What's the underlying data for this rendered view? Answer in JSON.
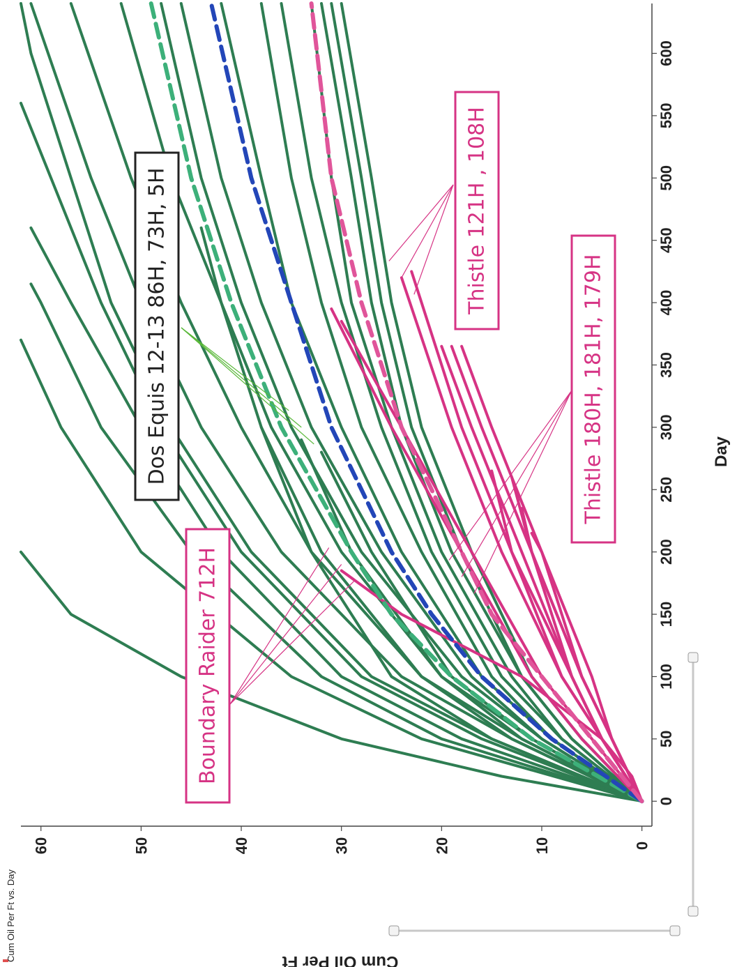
{
  "chart_data": {
    "type": "line",
    "title": "Cum Oil Per Ft vs. Day",
    "xlabel": "Day",
    "ylabel": "Cum Oil Per Ft",
    "xlim": [
      -20,
      640
    ],
    "ylim": [
      -1,
      62
    ],
    "x_ticks": [
      0,
      50,
      100,
      150,
      200,
      250,
      300,
      350,
      400,
      450,
      500,
      550,
      600
    ],
    "y_ticks": [
      0,
      10,
      20,
      30,
      40,
      50,
      60
    ],
    "grid": false,
    "colors": {
      "green_wells": "#2e7d52",
      "thistle_wells": "#d63384",
      "green_type_curve": "#3db07a",
      "blue_type_curve": "#2346b8",
      "pink_type_curve": "#e0559a",
      "dos_equis_box": "#222222",
      "thistle_box": "#d63384"
    },
    "series": [
      {
        "group": "green",
        "x": [
          0,
          20,
          50,
          100,
          150,
          200
        ],
        "y": [
          0,
          14,
          30,
          46,
          57,
          65
        ]
      },
      {
        "group": "green",
        "x": [
          0,
          50,
          100,
          200,
          300,
          370
        ],
        "y": [
          0,
          22,
          35,
          50,
          58,
          62
        ]
      },
      {
        "group": "green",
        "x": [
          0,
          50,
          100,
          200,
          300,
          400,
          415
        ],
        "y": [
          0,
          20,
          32,
          45,
          54,
          60,
          61
        ]
      },
      {
        "group": "green",
        "x": [
          0,
          50,
          100,
          200,
          300,
          400,
          460
        ],
        "y": [
          0,
          18,
          30,
          42,
          50,
          57,
          61
        ]
      },
      {
        "group": "green",
        "x": [
          0,
          50,
          100,
          200,
          300,
          400,
          500,
          560
        ],
        "y": [
          0,
          16,
          28,
          40,
          48,
          54,
          59,
          62
        ]
      },
      {
        "group": "green",
        "x": [
          0,
          50,
          100,
          200,
          300,
          400,
          500,
          600,
          640
        ],
        "y": [
          0,
          15,
          27,
          39,
          47,
          53,
          57,
          61,
          62
        ]
      },
      {
        "group": "green",
        "x": [
          0,
          50,
          100,
          200,
          300,
          400,
          500,
          640
        ],
        "y": [
          0,
          13,
          24,
          36,
          44,
          50,
          55,
          61
        ]
      },
      {
        "group": "green",
        "x": [
          0,
          50,
          100,
          200,
          300,
          400,
          500,
          640
        ],
        "y": [
          0,
          12,
          22,
          33,
          40,
          46,
          51,
          57
        ]
      },
      {
        "group": "green",
        "x": [
          0,
          50,
          100,
          200,
          300,
          400,
          500,
          640
        ],
        "y": [
          0,
          11,
          20,
          30,
          37,
          42,
          47,
          52
        ]
      },
      {
        "group": "green",
        "x": [
          0,
          50,
          100,
          200,
          300,
          400,
          500,
          640
        ],
        "y": [
          0,
          10,
          18,
          28,
          35,
          40,
          44,
          48
        ]
      },
      {
        "group": "green",
        "x": [
          0,
          50,
          100,
          200,
          300,
          400,
          500,
          640
        ],
        "y": [
          0,
          10,
          17,
          26,
          33,
          38,
          42,
          46
        ]
      },
      {
        "group": "green",
        "x": [
          0,
          50,
          100,
          200,
          300,
          400,
          500,
          640
        ],
        "y": [
          0,
          9,
          16,
          24,
          30,
          35,
          38,
          42
        ]
      },
      {
        "group": "green",
        "x": [
          0,
          50,
          100,
          200,
          300,
          400,
          500,
          640
        ],
        "y": [
          0,
          9,
          15,
          22,
          28,
          32,
          35,
          38
        ]
      },
      {
        "group": "green",
        "x": [
          0,
          50,
          100,
          200,
          300,
          400,
          500,
          640
        ],
        "y": [
          0,
          8,
          14,
          21,
          26,
          30,
          33,
          36
        ]
      },
      {
        "group": "green",
        "x": [
          0,
          50,
          100,
          200,
          300,
          400,
          500,
          640
        ],
        "y": [
          0,
          8,
          13,
          20,
          25,
          29,
          31,
          33
        ]
      },
      {
        "group": "green",
        "x": [
          0,
          50,
          100,
          200,
          300,
          400,
          500,
          640
        ],
        "y": [
          0,
          7,
          12,
          19,
          24,
          27,
          29,
          32
        ]
      },
      {
        "group": "green",
        "x": [
          0,
          50,
          100,
          200,
          300,
          400,
          500,
          640
        ],
        "y": [
          0,
          7,
          12,
          18,
          23,
          26,
          28,
          31
        ]
      },
      {
        "group": "green",
        "x": [
          0,
          50,
          100,
          200,
          300,
          400,
          500,
          640
        ],
        "y": [
          0,
          6,
          11,
          17,
          22,
          25,
          27,
          30
        ]
      },
      {
        "group": "green",
        "x": [
          0,
          50,
          100,
          200,
          300,
          400,
          460
        ],
        "y": [
          0,
          13,
          22,
          32,
          38,
          42,
          44
        ]
      },
      {
        "group": "green",
        "x": [
          0,
          50,
          100,
          200,
          300
        ],
        "y": [
          0,
          15,
          25,
          33,
          38
        ]
      },
      {
        "group": "green",
        "x": [
          0,
          50,
          100,
          200,
          290
        ],
        "y": [
          0,
          12,
          20,
          29,
          34
        ]
      },
      {
        "group": "green",
        "x": [
          0,
          50,
          100,
          200,
          280
        ],
        "y": [
          0,
          11,
          19,
          27,
          32
        ]
      },
      {
        "group": "thistle",
        "x": [
          0,
          20,
          50,
          100,
          150,
          185
        ],
        "y": [
          0,
          1,
          4,
          12,
          24,
          30
        ]
      },
      {
        "group": "thistle",
        "x": [
          0,
          50,
          100,
          200,
          300,
          395
        ],
        "y": [
          0,
          6,
          11,
          18,
          25,
          31
        ]
      },
      {
        "group": "thistle",
        "x": [
          0,
          50,
          100,
          200,
          300,
          385
        ],
        "y": [
          0,
          5,
          10,
          17,
          24,
          30
        ]
      },
      {
        "group": "thistle",
        "x": [
          0,
          50,
          100,
          200,
          300,
          420
        ],
        "y": [
          0,
          4,
          8,
          14,
          19,
          24
        ]
      },
      {
        "group": "thistle",
        "x": [
          0,
          50,
          100,
          200,
          300,
          425
        ],
        "y": [
          0,
          4,
          7,
          13,
          18,
          23
        ]
      },
      {
        "group": "thistle",
        "x": [
          0,
          50,
          100,
          200,
          300,
          365
        ],
        "y": [
          0,
          4,
          7,
          12,
          17,
          20
        ]
      },
      {
        "group": "thistle",
        "x": [
          0,
          50,
          100,
          200,
          300,
          365
        ],
        "y": [
          0,
          3,
          6,
          11,
          16,
          19
        ]
      },
      {
        "group": "thistle",
        "x": [
          0,
          50,
          100,
          200,
          300,
          365
        ],
        "y": [
          0,
          3,
          5,
          10,
          15,
          18
        ]
      },
      {
        "group": "thistle",
        "x": [
          0,
          50,
          100,
          200,
          265
        ],
        "y": [
          0,
          4,
          8,
          13,
          15
        ]
      },
      {
        "group": "thistle",
        "x": [
          0,
          50,
          100,
          200,
          260
        ],
        "y": [
          0,
          3,
          6,
          11,
          13
        ]
      },
      {
        "group": "thistle",
        "x": [
          0,
          50,
          100,
          150,
          200,
          215
        ],
        "y": [
          0,
          3,
          6,
          8,
          10,
          11
        ]
      },
      {
        "group": "thistle",
        "x": [
          0,
          50,
          100,
          150,
          200,
          235
        ],
        "y": [
          0,
          4,
          7,
          9,
          11,
          12
        ]
      },
      {
        "group": "green_type_curve",
        "dashed": true,
        "x": [
          0,
          50,
          100,
          150,
          200,
          300,
          400,
          500,
          640
        ],
        "y": [
          0,
          11,
          19,
          25,
          29,
          36,
          41,
          45,
          49
        ]
      },
      {
        "group": "blue_type_curve",
        "dashed": true,
        "x": [
          0,
          50,
          100,
          150,
          200,
          300,
          400,
          500,
          640
        ],
        "y": [
          0,
          9,
          16,
          21,
          25,
          31,
          35,
          39,
          43
        ]
      },
      {
        "group": "pink_type_curve",
        "dashed": true,
        "x": [
          0,
          50,
          100,
          150,
          200,
          300,
          400,
          500,
          640
        ],
        "y": [
          0,
          5,
          10,
          15,
          18,
          24,
          28,
          31,
          33
        ]
      }
    ],
    "annotations": [
      {
        "text": "Dos Equis 12-13 86H, 73H, 5H",
        "style": "dark",
        "pointer_day": 300,
        "pointer_value": 34
      },
      {
        "text": "Boundary Raider 712H",
        "style": "pink",
        "pointer_day": 190,
        "pointer_value": 30
      },
      {
        "text": "Thistle 121H , 108H",
        "style": "pink",
        "pointer_day": 420,
        "pointer_value": 24
      },
      {
        "text": "Thistle 180H, 181H, 179H",
        "style": "pink",
        "pointer_day": 180,
        "pointer_value": 18
      }
    ]
  }
}
